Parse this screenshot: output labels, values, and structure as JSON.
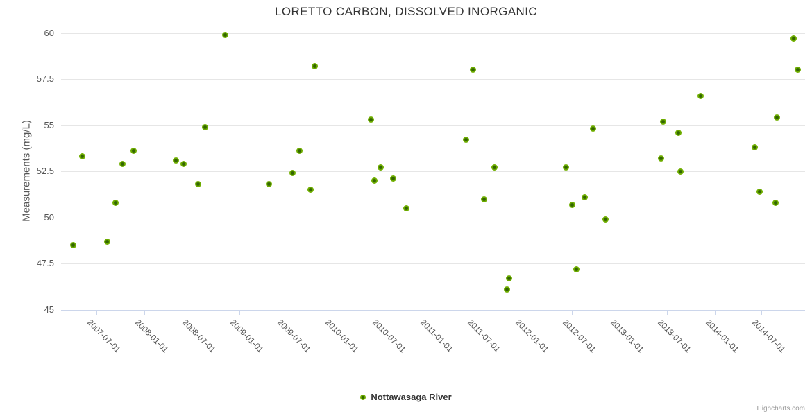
{
  "title": "LORETTO CARBON, DISSOLVED INORGANIC",
  "legend": {
    "series_label": "Nottawasaga River"
  },
  "credits_label": "Highcharts.com",
  "colors": {
    "marker_outer": "#77b300",
    "marker_core": "#336600",
    "gridline": "#e6e6e6",
    "axis_line": "#ccd6eb",
    "title_text": "#333333",
    "axis_text": "#555555"
  },
  "chart_data": {
    "type": "scatter",
    "title": "LORETTO CARBON, DISSOLVED INORGANIC",
    "xlabel": "",
    "ylabel": "Measurements (mg/L)",
    "ylim": [
      45,
      60
    ],
    "yticks": [
      45,
      47.5,
      50,
      52.5,
      55,
      57.5,
      60
    ],
    "xlim": [
      "2007-02-15",
      "2014-12-15"
    ],
    "xticks": [
      "2007-07-01",
      "2008-01-01",
      "2008-07-01",
      "2009-01-01",
      "2009-07-01",
      "2010-01-01",
      "2010-07-01",
      "2011-01-01",
      "2011-07-01",
      "2012-01-01",
      "2012-07-01",
      "2013-01-01",
      "2013-07-01",
      "2014-01-01",
      "2014-07-01"
    ],
    "grid": "horizontal",
    "legend_position": "bottom-center",
    "series": [
      {
        "name": "Nottawasaga River",
        "color": "#77b300",
        "points": [
          [
            "2007-04-03",
            48.5
          ],
          [
            "2007-05-07",
            53.3
          ],
          [
            "2007-08-12",
            48.7
          ],
          [
            "2007-09-11",
            50.8
          ],
          [
            "2007-10-09",
            52.9
          ],
          [
            "2007-11-20",
            53.6
          ],
          [
            "2008-05-01",
            53.1
          ],
          [
            "2008-06-01",
            52.9
          ],
          [
            "2008-07-25",
            51.8
          ],
          [
            "2008-08-22",
            54.9
          ],
          [
            "2008-11-07",
            59.9
          ],
          [
            "2009-04-25",
            51.8
          ],
          [
            "2009-07-24",
            52.4
          ],
          [
            "2009-08-19",
            53.6
          ],
          [
            "2009-10-01",
            51.5
          ],
          [
            "2009-10-18",
            58.2
          ],
          [
            "2010-05-21",
            55.3
          ],
          [
            "2010-06-04",
            52.0
          ],
          [
            "2010-06-28",
            52.7
          ],
          [
            "2010-08-14",
            52.1
          ],
          [
            "2010-10-04",
            50.5
          ],
          [
            "2011-05-22",
            54.2
          ],
          [
            "2011-06-18",
            58.0
          ],
          [
            "2011-07-30",
            51.0
          ],
          [
            "2011-09-07",
            52.7
          ],
          [
            "2011-10-25",
            46.1
          ],
          [
            "2011-11-02",
            46.7
          ],
          [
            "2012-06-08",
            52.7
          ],
          [
            "2012-07-03",
            50.7
          ],
          [
            "2012-07-18",
            47.2
          ],
          [
            "2012-08-21",
            51.1
          ],
          [
            "2012-09-21",
            54.8
          ],
          [
            "2012-11-08",
            49.9
          ],
          [
            "2013-06-08",
            53.2
          ],
          [
            "2013-06-18",
            55.2
          ],
          [
            "2013-08-16",
            54.6
          ],
          [
            "2013-08-24",
            52.5
          ],
          [
            "2013-11-09",
            56.6
          ],
          [
            "2014-06-05",
            53.8
          ],
          [
            "2014-06-22",
            51.4
          ],
          [
            "2014-08-23",
            50.8
          ],
          [
            "2014-08-30",
            55.4
          ],
          [
            "2014-11-01",
            59.7
          ],
          [
            "2014-11-17",
            58.0
          ]
        ]
      }
    ]
  }
}
